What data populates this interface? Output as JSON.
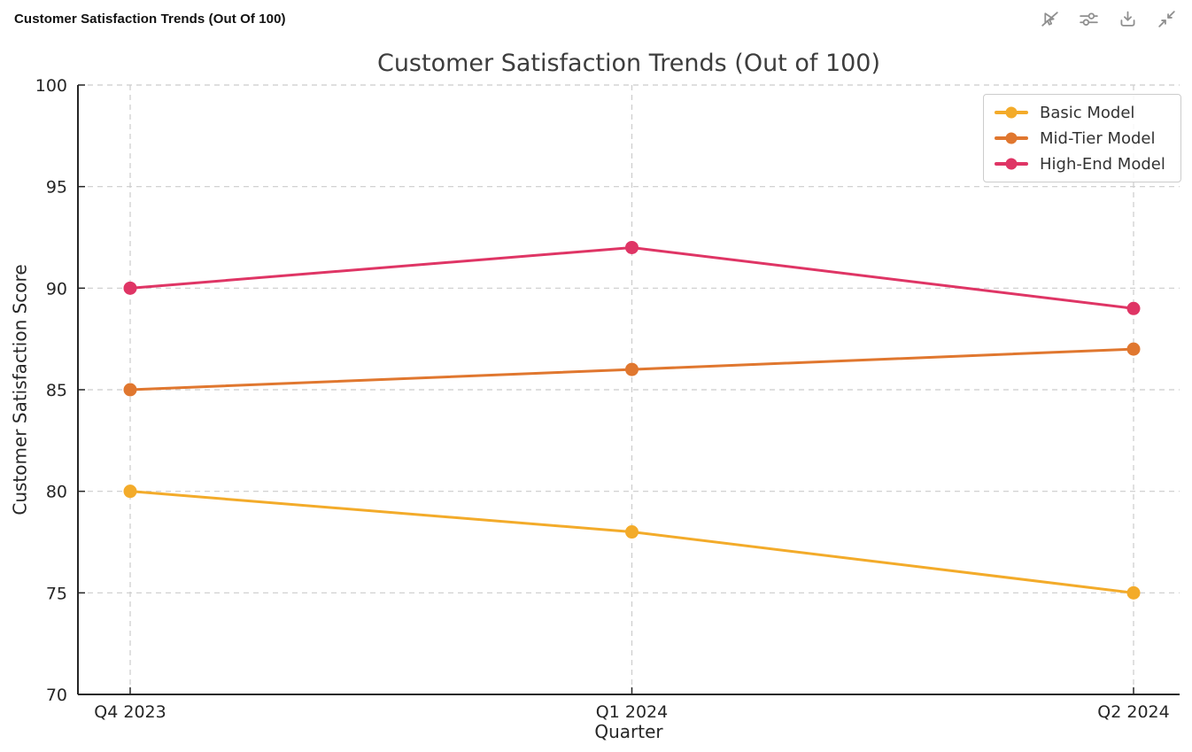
{
  "header": {
    "title": "Customer Satisfaction Trends (Out Of 100)",
    "toolbar_icons": [
      "interact-off-icon",
      "sliders-icon",
      "download-icon",
      "collapse-icon"
    ]
  },
  "chart_data": {
    "type": "line",
    "title": "Customer Satisfaction Trends (Out of 100)",
    "xlabel": "Quarter",
    "ylabel": "Customer Satisfaction Score",
    "categories": [
      "Q4 2023",
      "Q1 2024",
      "Q2 2024"
    ],
    "series": [
      {
        "name": "Basic Model",
        "color": "#F3AB2A",
        "values": [
          80,
          78,
          75
        ]
      },
      {
        "name": "Mid-Tier Model",
        "color": "#E0772F",
        "values": [
          85,
          86,
          87
        ]
      },
      {
        "name": "High-End Model",
        "color": "#DF3565",
        "values": [
          90,
          92,
          89
        ]
      }
    ],
    "ylim": [
      70,
      100
    ],
    "yticks": [
      70,
      75,
      80,
      85,
      90,
      95,
      100
    ],
    "grid": true,
    "grid_style": "dashed",
    "legend_position": "upper right",
    "colors": {
      "grid": "#cccccc",
      "axis": "#262626",
      "title": "#3d3d3d"
    }
  }
}
